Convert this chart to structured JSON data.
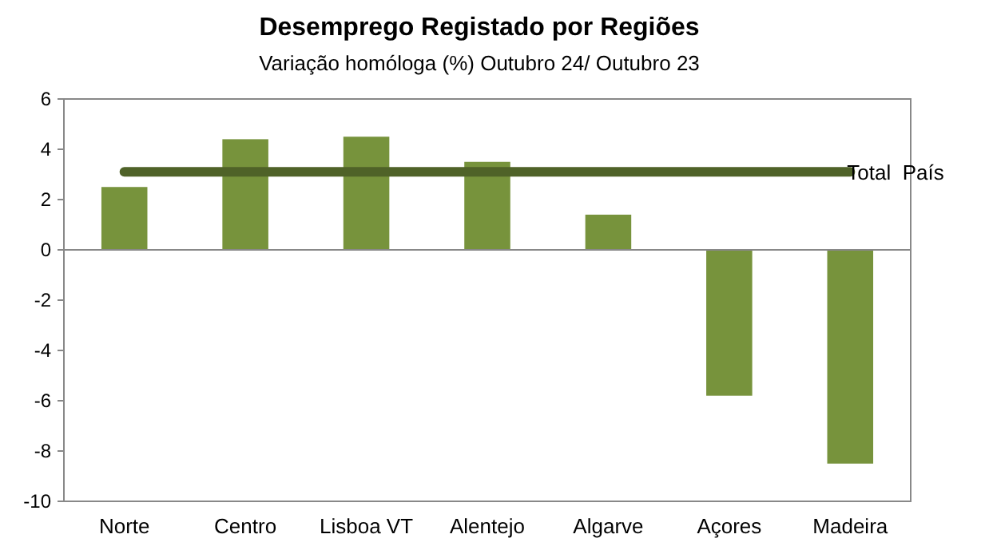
{
  "chart_data": {
    "type": "bar",
    "title": "Desemprego Registado por Regiões",
    "subtitle": "Variação homóloga (%) Outubro 24/ Outubro 23",
    "categories": [
      "Norte",
      "Centro",
      "Lisboa VT",
      "Alentejo",
      "Algarve",
      "Açores",
      "Madeira"
    ],
    "values": [
      2.5,
      4.4,
      4.5,
      3.5,
      1.4,
      -5.8,
      -8.5
    ],
    "color": "#77933c",
    "ylim": [
      -10,
      6
    ],
    "yticks": [
      -10,
      -8,
      -6,
      -4,
      -2,
      0,
      2,
      4,
      6
    ],
    "ref_lines": [
      {
        "axis": "y",
        "value": 3.1,
        "label": "Total  País",
        "color": "#4f6228"
      }
    ]
  }
}
